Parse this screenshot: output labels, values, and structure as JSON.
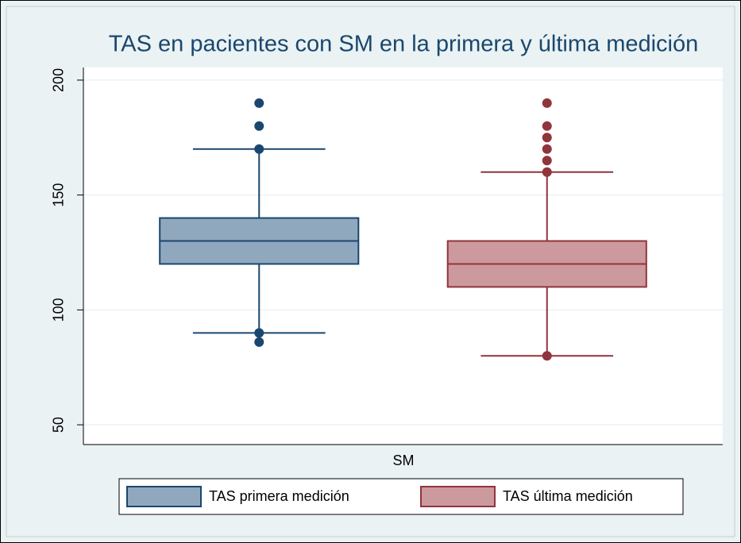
{
  "chart_data": {
    "type": "box",
    "title": "TAS en pacientes con SM en la primera y última medición",
    "x_label": "SM",
    "ylim": [
      41.4,
      205.5
    ],
    "yticks": [
      50,
      100,
      150,
      200
    ],
    "grid": true,
    "legend": "bottom",
    "series": [
      {
        "name": "TAS primera medición",
        "color": "#1a476f",
        "fill": "#90a8be",
        "whisker_low": 90,
        "q1": 120,
        "median": 130,
        "q3": 140,
        "whisker_high": 170,
        "outliers": [
          190,
          180,
          170,
          90,
          86
        ]
      },
      {
        "name": "TAS última medición",
        "color": "#90353b",
        "fill": "#cc9a9e",
        "whisker_low": 80,
        "q1": 110,
        "median": 120,
        "q3": 130,
        "whisker_high": 160,
        "outliers": [
          190,
          180,
          175,
          170,
          165,
          160,
          80
        ]
      }
    ]
  }
}
